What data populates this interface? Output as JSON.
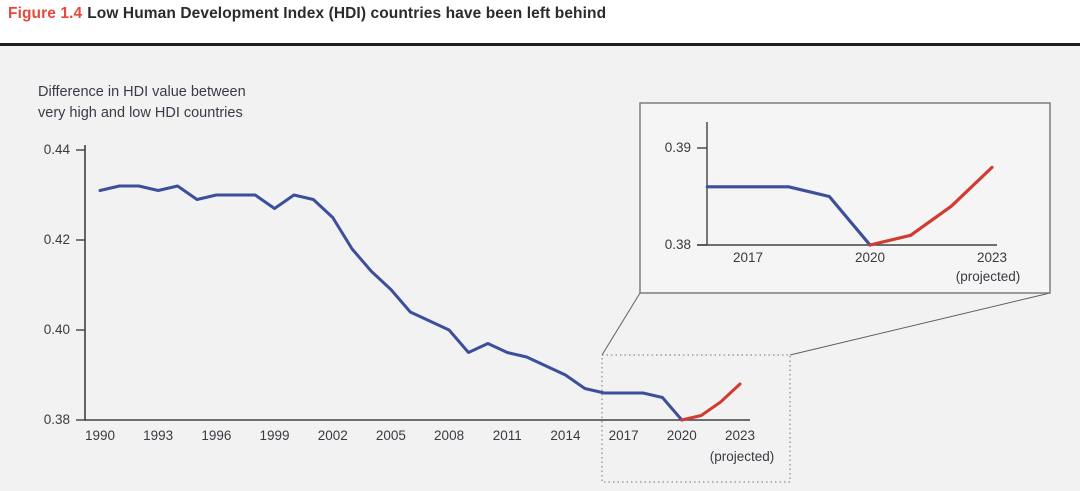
{
  "figure": {
    "label": "Figure 1.4",
    "title": "Low Human Development Index (HDI) countries have been left behind"
  },
  "panel": {
    "subtitle_line1": "Difference in HDI value between",
    "subtitle_line2": "very high and low HDI countries"
  },
  "colors": {
    "title_accent": "#e9463c",
    "observed_blue": "#3c4f9b",
    "projected_red": "#d23b30",
    "panel_bg": "#f2f2f3",
    "axis": "#414144",
    "text": "#3a3a42",
    "divider": "#1d1d1f"
  },
  "chart_data": {
    "type": "line",
    "title": "Difference in HDI value between very high and low HDI countries",
    "x": [
      1990,
      1991,
      1992,
      1993,
      1994,
      1995,
      1996,
      1997,
      1998,
      1999,
      2000,
      2001,
      2002,
      2003,
      2004,
      2005,
      2006,
      2007,
      2008,
      2009,
      2010,
      2011,
      2012,
      2013,
      2014,
      2015,
      2016,
      2017,
      2018,
      2019,
      2020,
      2021,
      2022,
      2023
    ],
    "values": [
      0.431,
      0.432,
      0.432,
      0.431,
      0.432,
      0.429,
      0.43,
      0.43,
      0.43,
      0.427,
      0.43,
      0.429,
      0.425,
      0.418,
      0.413,
      0.409,
      0.404,
      0.402,
      0.4,
      0.395,
      0.397,
      0.395,
      0.394,
      0.392,
      0.39,
      0.387,
      0.386,
      0.386,
      0.386,
      0.385,
      0.38,
      0.381,
      0.384,
      0.388
    ],
    "projection_start_year": 2020,
    "series": [
      {
        "name": "observed",
        "color": "#3c4f9b"
      },
      {
        "name": "projected",
        "color": "#d23b30"
      }
    ],
    "ylim": [
      0.38,
      0.44
    ],
    "y_ticks": [
      "0.44",
      "0.42",
      "0.40",
      "0.38"
    ],
    "x_ticks": [
      "1990",
      "1993",
      "1996",
      "1999",
      "2002",
      "2005",
      "2008",
      "2011",
      "2014",
      "2017",
      "2020",
      "2023"
    ],
    "x_note": "(projected)",
    "grid": false,
    "legend": "none",
    "inset": {
      "start_year": 2016,
      "end_year": 2023,
      "ylim": [
        0.38,
        0.392
      ],
      "y_ticks": [
        "0.39",
        "0.38"
      ],
      "x_ticks": [
        "2017",
        "2020",
        "2023"
      ],
      "x_note": "(projected)"
    }
  }
}
